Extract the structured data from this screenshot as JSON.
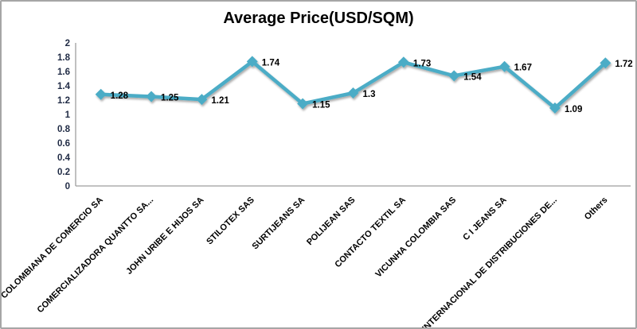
{
  "window": {
    "title": "Average Price(USD/SQM)"
  },
  "chart_data": {
    "type": "line",
    "title": "Average Price(USD/SQM)",
    "categories": [
      "COLOMBIANA DE COMERCIO SA",
      "COMERCIALIZADORA QUANTTO SA...",
      "JOHN URIBE E HIJOS SA",
      "STILOTEX SAS",
      "SURTIJEANS SA",
      "POLIJEAN SAS",
      "CONTACTO TEXTIL SA",
      "VICUNHA COLOMBIA SAS",
      "C I JEANS SA",
      "INTERNACIONAL DE DISTRIBUCIONES DE...",
      "Others"
    ],
    "values": [
      1.28,
      1.25,
      1.21,
      1.74,
      1.15,
      1.3,
      1.73,
      1.54,
      1.67,
      1.09,
      1.72
    ],
    "data_labels": [
      "1.28",
      "1.25",
      "1.21",
      "1.74",
      "1.15",
      "1.3",
      "1.73",
      "1.54",
      "1.67",
      "1.09",
      "1.72"
    ],
    "xlabel": "",
    "ylabel": "",
    "ylim": [
      0,
      2
    ],
    "y_ticks": [
      {
        "v": 0,
        "label": "0"
      },
      {
        "v": 0.2,
        "label": "0.2"
      },
      {
        "v": 0.4,
        "label": "0.4"
      },
      {
        "v": 0.6,
        "label": "0.6"
      },
      {
        "v": 0.8,
        "label": "0.8"
      },
      {
        "v": 1,
        "label": "1"
      },
      {
        "v": 1.2,
        "label": "1.2"
      },
      {
        "v": 1.4,
        "label": "1.4"
      },
      {
        "v": 1.6,
        "label": "1.6"
      },
      {
        "v": 1.8,
        "label": "1.8"
      },
      {
        "v": 2,
        "label": "2"
      }
    ],
    "grid": false,
    "legend_position": "none",
    "line_color": "#4BACC6",
    "marker": "diamond",
    "data_label_color": "#000000",
    "category_label_color": "#000000",
    "tick_label_color": "#1f2a44",
    "axis_color": "#9e9e9e"
  }
}
